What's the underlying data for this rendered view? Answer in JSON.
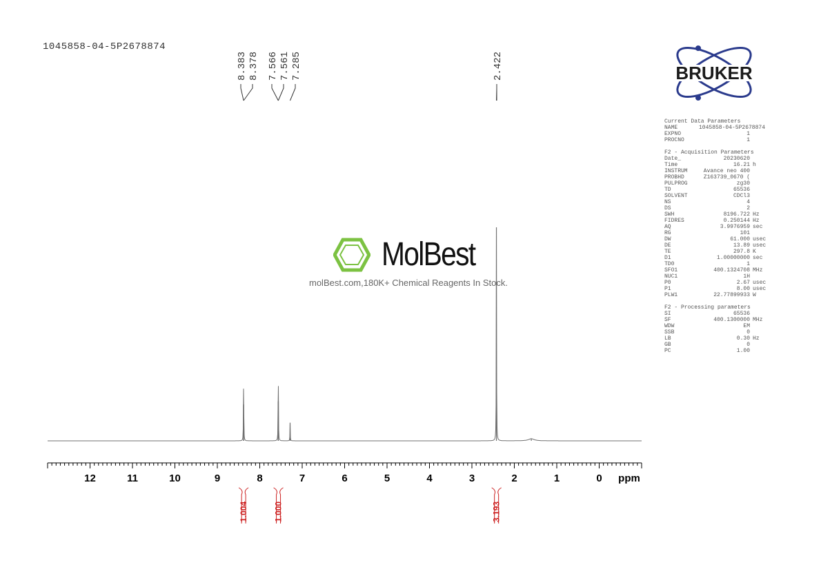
{
  "title": "1045858-04-5P2678874",
  "logo": {
    "text": "BRUKER",
    "color": "#1a1a1a",
    "accent": "#2a3a8c"
  },
  "watermark": {
    "brand": "MolBest",
    "tagline": "molBest.com,180K+ Chemical Reagents In Stock.",
    "color": "#7cc242"
  },
  "params": {
    "current_header": "Current Data Parameters",
    "current": [
      [
        "NAME",
        "1045858-04-5P2678874",
        ""
      ],
      [
        "EXPNO",
        "1",
        ""
      ],
      [
        "PROCNO",
        "1",
        ""
      ]
    ],
    "acq_header": "F2 - Acquisition Parameters",
    "acq": [
      [
        "Date_",
        "20230620",
        ""
      ],
      [
        "Time",
        "16.21",
        "h"
      ],
      [
        "INSTRUM",
        "Avance neo 400",
        ""
      ],
      [
        "PROBHD",
        "Z163739_0670 (",
        ""
      ],
      [
        "PULPROG",
        "zg30",
        ""
      ],
      [
        "TD",
        "65536",
        ""
      ],
      [
        "SOLVENT",
        "CDCl3",
        ""
      ],
      [
        "NS",
        "4",
        ""
      ],
      [
        "DS",
        "2",
        ""
      ],
      [
        "SWH",
        "8196.722",
        "Hz"
      ],
      [
        "FIDRES",
        "0.250144",
        "Hz"
      ],
      [
        "AQ",
        "3.9976959",
        "sec"
      ],
      [
        "RG",
        "101",
        ""
      ],
      [
        "DW",
        "61.000",
        "usec"
      ],
      [
        "DE",
        "13.89",
        "usec"
      ],
      [
        "TE",
        "297.8",
        "K"
      ],
      [
        "D1",
        "1.00000000",
        "sec"
      ],
      [
        "TD0",
        "1",
        ""
      ],
      [
        "SFO1",
        "400.1324708",
        "MHz"
      ],
      [
        "NUC1",
        "1H",
        ""
      ],
      [
        "P0",
        "2.67",
        "usec"
      ],
      [
        "P1",
        "8.00",
        "usec"
      ],
      [
        "PLW1",
        "22.77899933",
        "W"
      ]
    ],
    "proc_header": "F2 - Processing parameters",
    "proc": [
      [
        "SI",
        "65536",
        ""
      ],
      [
        "SF",
        "400.1300000",
        "MHz"
      ],
      [
        "WDW",
        "EM",
        ""
      ],
      [
        "SSB",
        "0",
        ""
      ],
      [
        "LB",
        "0.30",
        "Hz"
      ],
      [
        "GB",
        "0",
        ""
      ],
      [
        "PC",
        "1.00",
        ""
      ]
    ]
  },
  "chart_data": {
    "type": "line",
    "xlabel": "ppm",
    "xlim": [
      13.0,
      -1.0
    ],
    "x_reversed": true,
    "xticks": [
      12,
      11,
      10,
      9,
      8,
      7,
      6,
      5,
      4,
      3,
      2,
      1,
      0
    ],
    "peaks": [
      {
        "ppm": 8.383,
        "intensity": 0.17
      },
      {
        "ppm": 8.378,
        "intensity": 0.17
      },
      {
        "ppm": 7.566,
        "intensity": 0.185
      },
      {
        "ppm": 7.561,
        "intensity": 0.185
      },
      {
        "ppm": 7.285,
        "intensity": 0.085
      },
      {
        "ppm": 2.422,
        "intensity": 1.0
      },
      {
        "ppm": 1.6,
        "intensity": 0.01
      }
    ],
    "peak_labels": [
      {
        "group": [
          8.383,
          8.378
        ],
        "labels": [
          "8.383",
          "8.378"
        ]
      },
      {
        "group": [
          7.566,
          7.561
        ],
        "labels": [
          "7.566",
          "7.561"
        ]
      },
      {
        "group": [
          7.285
        ],
        "labels": [
          "7.285"
        ]
      },
      {
        "group": [
          2.422
        ],
        "labels": [
          "2.422"
        ]
      }
    ],
    "integrals": [
      {
        "ppm": 8.38,
        "value": "1.004"
      },
      {
        "ppm": 7.56,
        "value": "1.000"
      },
      {
        "ppm": 2.42,
        "value": "3.193"
      }
    ],
    "integral_color": "#cc1f1f",
    "line_color": "#707070"
  }
}
